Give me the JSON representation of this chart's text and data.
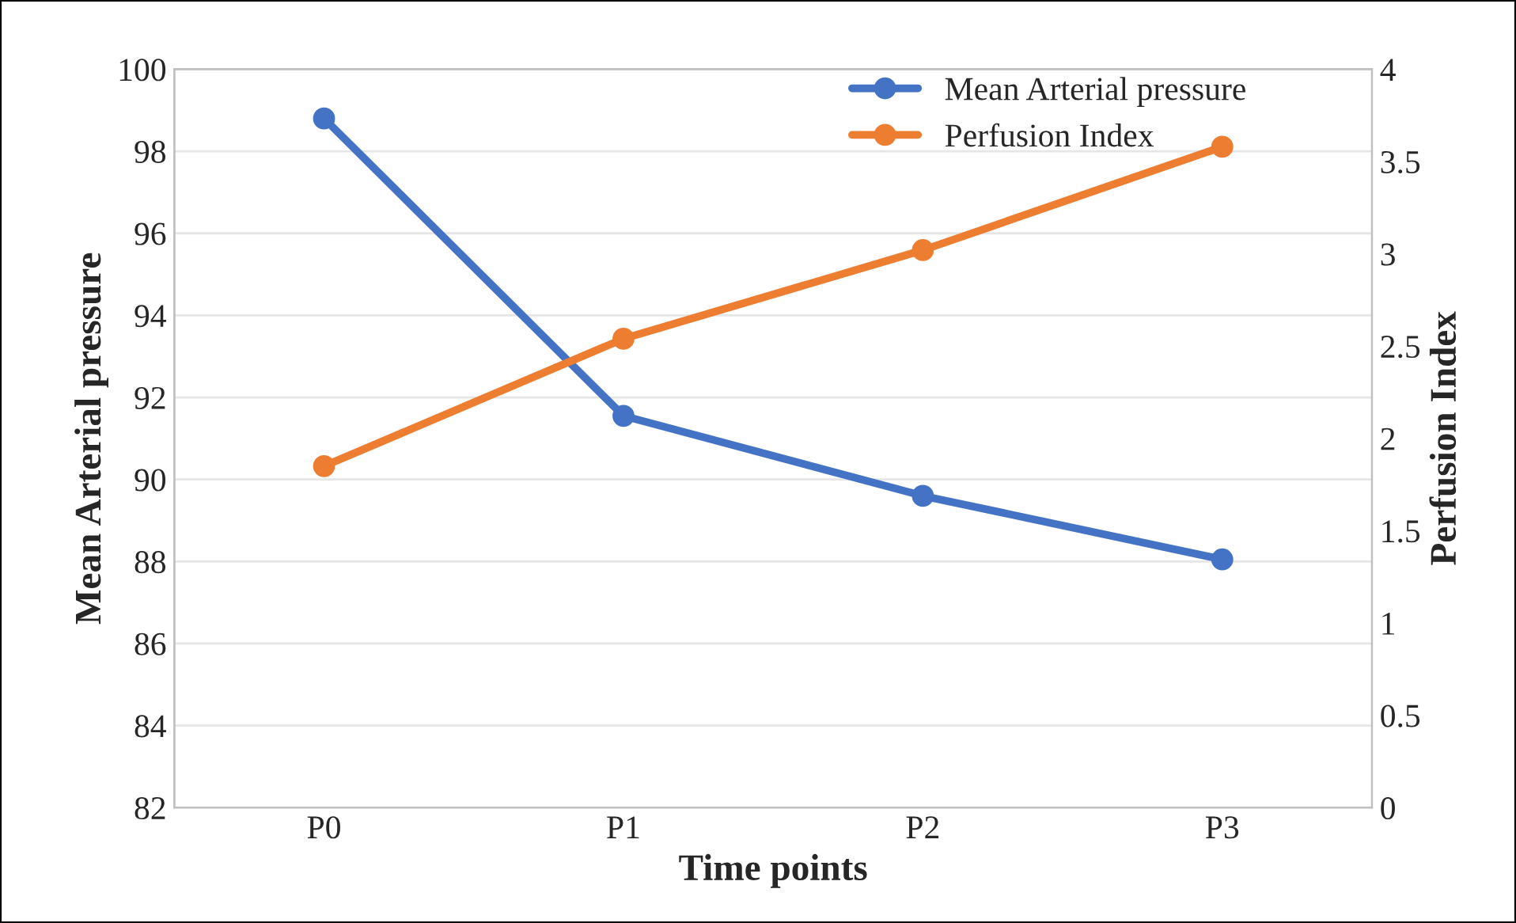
{
  "chart_data": {
    "type": "line",
    "xlabel": "Time points",
    "ylabel": "Mean Arterial pressure",
    "y2label": "Perfusion Index",
    "categories": [
      "P0",
      "P1",
      "P2",
      "P3"
    ],
    "series": [
      {
        "name": "Mean Arterial pressure",
        "color": "#4472c4",
        "values": [
          98.8,
          91.55,
          89.6,
          88.05
        ]
      },
      {
        "name": "Perfusion Index",
        "color": "#ed7d31",
        "values": [
          1.85,
          2.54,
          3.02,
          3.58
        ],
        "axis": "y2"
      }
    ],
    "ylim": [
      82,
      100
    ],
    "yticks": [
      82,
      84,
      86,
      88,
      90,
      92,
      94,
      96,
      98,
      100
    ],
    "y2lim": [
      0,
      4
    ],
    "y2ticks": [
      0,
      0.5,
      1,
      1.5,
      2,
      2.5,
      3,
      3.5,
      4
    ],
    "grid": "y",
    "legend": "top right",
    "marker": "circle",
    "line_style": "solid"
  }
}
